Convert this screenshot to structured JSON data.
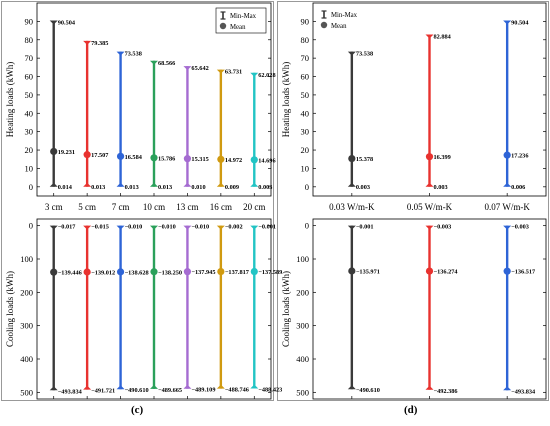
{
  "chart_data": [
    {
      "id": "c-top",
      "type": "errorbar",
      "ylabel": "Heating loads (kWh)",
      "ylim": [
        -5,
        100
      ],
      "yticks": [
        0,
        10,
        20,
        30,
        40,
        50,
        60,
        70,
        80,
        90
      ],
      "categories": [
        "3 cm",
        "5 cm",
        "7 cm",
        "10 cm",
        "13 cm",
        "16 cm",
        "20 cm"
      ],
      "colors": [
        "#3a3a3a",
        "#e8322f",
        "#2e64d6",
        "#2aa05a",
        "#a56cd1",
        "#d09a10",
        "#22c4c4"
      ],
      "max": [
        90.504,
        79.385,
        73.538,
        68.566,
        65.642,
        63.731,
        62.028
      ],
      "mean": [
        19.231,
        17.507,
        16.584,
        15.786,
        15.315,
        14.972,
        14.696
      ],
      "min": [
        0.014,
        0.013,
        0.013,
        0.013,
        0.01,
        0.009,
        0.003
      ],
      "labels": {
        "max": [
          "90.504",
          "79.385",
          "73.538",
          "68.566",
          "65.642",
          "63.731",
          "62.028"
        ],
        "mean": [
          "19.231",
          "17.507",
          "16.584",
          "15.786",
          "15.315",
          "14.972",
          "14.696"
        ],
        "min": [
          "0.014",
          "0.013",
          "0.013",
          "0.013",
          "0.010",
          "0.009",
          "0.003"
        ]
      },
      "legend": {
        "position": "top-right",
        "items": [
          "Min-Max",
          "Mean"
        ]
      }
    },
    {
      "id": "c-bottom",
      "type": "errorbar",
      "ylabel": "Cooling loads (kWh)",
      "ylim": [
        -20,
        520
      ],
      "y_inverted": true,
      "yticks": [
        0,
        100,
        200,
        300,
        400,
        500
      ],
      "categories": [
        "3 cm",
        "5 cm",
        "7 cm",
        "10 cm",
        "13 cm",
        "16 cm",
        "20 cm"
      ],
      "colors": [
        "#3a3a3a",
        "#e8322f",
        "#2e64d6",
        "#2aa05a",
        "#a56cd1",
        "#d09a10",
        "#22c4c4"
      ],
      "max": [
        -0.017,
        -0.015,
        -0.01,
        -0.01,
        -0.01,
        -0.002,
        -0.001
      ],
      "mean": [
        -139.446,
        -139.012,
        -138.628,
        -138.25,
        -137.945,
        -137.817,
        -137.589
      ],
      "min": [
        -493.834,
        -491.721,
        -490.61,
        -489.665,
        -489.109,
        -488.746,
        -488.423
      ],
      "labels": {
        "max": [
          "−0.017",
          "−0.015",
          "−0.010",
          "−0.010",
          "−0.010",
          "−0.002",
          "−0.001"
        ],
        "mean": [
          "−139.446",
          "−139.012",
          "−138.628",
          "−138.250",
          "−137.945",
          "−137.817",
          "−137.589"
        ],
        "min": [
          "−493.834",
          "−491.721",
          "−490.610",
          "−489.665",
          "−489.109",
          "−488.746",
          "−488.423"
        ]
      },
      "panel_label": "(c)"
    },
    {
      "id": "d-top",
      "type": "errorbar",
      "ylabel": "Heating loads (kWh)",
      "ylim": [
        -5,
        100
      ],
      "yticks": [
        0,
        10,
        20,
        30,
        40,
        50,
        60,
        70,
        80,
        90
      ],
      "categories": [
        "0.03 W/m-K",
        "0.05 W/m-K",
        "0.07 W/m-K"
      ],
      "colors": [
        "#3a3a3a",
        "#e8322f",
        "#2e64d6"
      ],
      "max": [
        73.538,
        82.884,
        90.504
      ],
      "mean": [
        15.378,
        16.399,
        17.236
      ],
      "min": [
        0.003,
        0.003,
        0.006
      ],
      "labels": {
        "max": [
          "73.538",
          "82.884",
          "90.504"
        ],
        "mean": [
          "15.378",
          "16.399",
          "17.236"
        ],
        "min": [
          "0.003",
          "0.003",
          "0.006"
        ]
      },
      "legend": {
        "position": "top-left",
        "items": [
          "Min-Max",
          "Mean"
        ]
      }
    },
    {
      "id": "d-bottom",
      "type": "errorbar",
      "ylabel": "Cooling loads (kWh)",
      "ylim": [
        -20,
        520
      ],
      "y_inverted": true,
      "yticks": [
        0,
        100,
        200,
        300,
        400,
        500
      ],
      "categories": [
        "0.03 W/m-K",
        "0.05 W/m-K",
        "0.07 W/m-K"
      ],
      "colors": [
        "#3a3a3a",
        "#e8322f",
        "#2e64d6"
      ],
      "max": [
        -0.001,
        -0.003,
        -0.003
      ],
      "mean": [
        -135.971,
        -136.274,
        -136.517
      ],
      "min": [
        -490.61,
        -492.386,
        -493.834
      ],
      "labels": {
        "max": [
          "−0.001",
          "−0.003",
          "−0.003"
        ],
        "mean": [
          "−135.971",
          "−136.274",
          "−136.517"
        ],
        "min": [
          "−490.610",
          "−492.386",
          "−493.834"
        ]
      },
      "panel_label": "(d)"
    }
  ]
}
